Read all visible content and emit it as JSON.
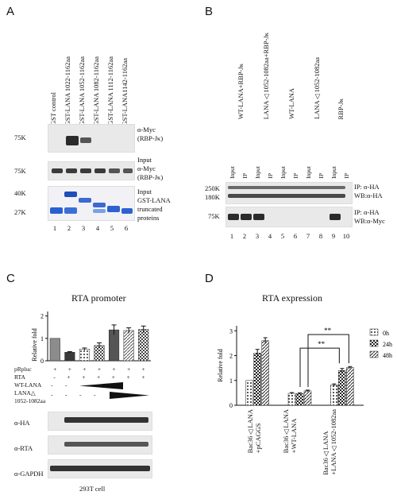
{
  "panelA": {
    "label": "A",
    "lanes": [
      "GST control",
      "GST-LANA 1022-1162aa",
      "GST-LANA 1052-1162aa",
      "GST-LANA 1082-1162aa",
      "GST-LANA 1112-1162aa",
      "GST-LANA1142-1162aa"
    ],
    "blot1": {
      "mw": "75K",
      "label1": "α-Myc",
      "label2": "(RBP-Jκ)"
    },
    "blot2": {
      "mw": "75K",
      "label1": "Input",
      "label2": "α-Myc",
      "label3": "(RBP-Jκ)"
    },
    "blot3": {
      "mw1": "40K",
      "mw2": "27K",
      "label1": "Input",
      "label2": "GST-LANA",
      "label3": "truncated",
      "label4": "proteins"
    },
    "numbers": [
      "1",
      "2",
      "3",
      "4",
      "5",
      "6"
    ]
  },
  "panelB": {
    "label": "B",
    "groups": [
      "WT-LANA+RBP-Jκ",
      "LANA△1052-1082aa+RBP-Jκ",
      "WT-LANA",
      "LANA△1052-1082aa",
      "RBP-Jκ"
    ],
    "lane_types": [
      "Input",
      "IP",
      "Input",
      "IP",
      "Input",
      "IP",
      "Input",
      "IP",
      "Input",
      "IP"
    ],
    "blot1": {
      "mw1": "250K",
      "mw2": "180K",
      "label1": "IP: α-HA",
      "label2": "WB:α-HA"
    },
    "blot2": {
      "mw": "75K",
      "label1": "IP: α-HA",
      "label2": "WB:α-Myc"
    },
    "numbers": [
      "1",
      "2",
      "3",
      "4",
      "5",
      "6",
      "7",
      "8",
      "9",
      "10"
    ]
  },
  "panelC": {
    "label": "C",
    "chart_data": {
      "type": "bar",
      "title": "RTA promoter",
      "ylabel": "Relative fold",
      "ylim": [
        0,
        2.2
      ],
      "yticks": [
        0,
        1,
        2
      ],
      "values": [
        1.0,
        0.38,
        0.52,
        0.68,
        1.38,
        1.35,
        1.4
      ],
      "errors": [
        0.0,
        0.03,
        0.05,
        0.12,
        0.22,
        0.12,
        0.15
      ],
      "colors": [
        "#8c8c8c",
        "#3a3a3a",
        "#a8a8a8",
        "#dedede",
        "#555555",
        "#777777",
        "#b0b0b0"
      ]
    },
    "rows": [
      {
        "name": "pRpluc",
        "signs": [
          "+",
          "+",
          "+",
          "+",
          "+",
          "+",
          "+"
        ]
      },
      {
        "name": "RTA",
        "signs": [
          "-",
          "+",
          "+",
          "+",
          "+",
          "+",
          "+"
        ]
      }
    ],
    "row_wt": "WT-LANA",
    "row_lana1": "LANA△",
    "row_lana2": "1052-1082aa",
    "wt_signs": [
      "-",
      "-"
    ],
    "lana_signs": [
      "-",
      "-",
      "-",
      "-"
    ],
    "blots": [
      "α-HA",
      "α-RTA",
      "α-GAPDH"
    ],
    "cell": "293T cell"
  },
  "panelD": {
    "label": "D",
    "chart_data": {
      "type": "bar",
      "title": "RTA expression",
      "ylabel": "Relative fold",
      "ylim": [
        0,
        3.2
      ],
      "yticks": [
        0,
        1,
        2,
        3
      ],
      "categories": [
        "Bac36△LANA +pCAGGS",
        "Bac36△LANA +WT-LANA",
        "Bac36△LANA +LANA△1052-1082aa"
      ],
      "series": [
        {
          "name": "0h",
          "values": [
            1.0,
            0.48,
            0.82
          ],
          "errors": [
            0.0,
            0.03,
            0.04
          ]
        },
        {
          "name": "24h",
          "values": [
            2.1,
            0.47,
            1.4
          ],
          "errors": [
            0.15,
            0.03,
            0.08
          ]
        },
        {
          "name": "48h",
          "values": [
            2.6,
            0.58,
            1.52
          ],
          "errors": [
            0.12,
            0.03,
            0.04
          ]
        }
      ],
      "significance": [
        "**",
        "**"
      ],
      "legend": "top-right"
    },
    "cat_lines": [
      [
        "Bac36△LANA",
        "+pCAGGS"
      ],
      [
        "Bac36△LANA",
        "+WT-LANA"
      ],
      [
        "Bac36△LANA",
        "+LANA△1052-1082aa"
      ]
    ]
  }
}
